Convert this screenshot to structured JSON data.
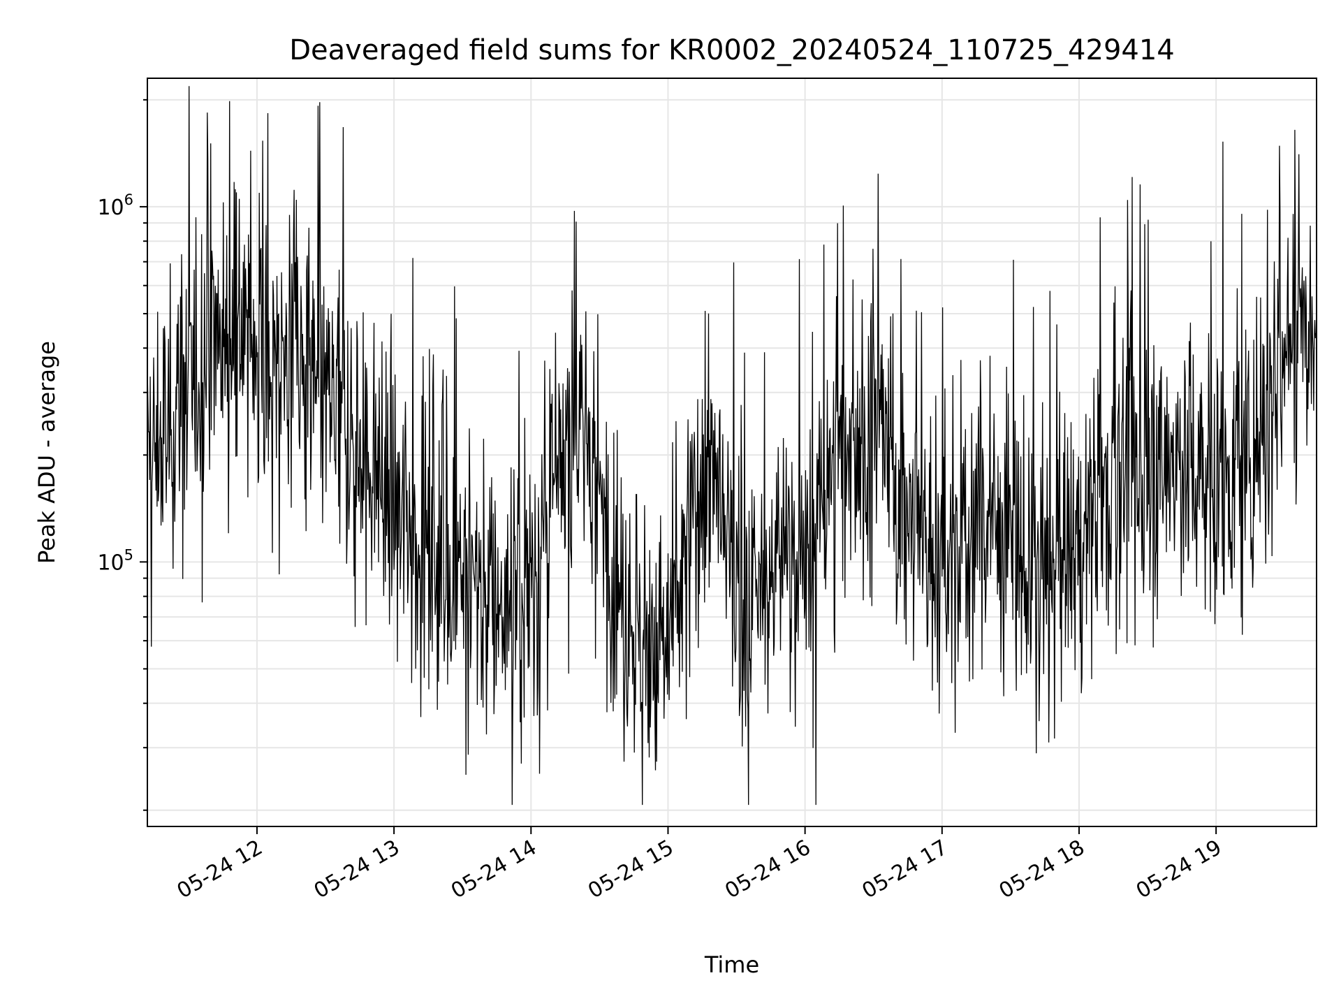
{
  "chart_data": {
    "type": "line",
    "title": "Deaveraged field sums for KR0002_20240524_110725_429414",
    "xlabel": "Time",
    "ylabel": "Peak ADU - average",
    "yscale": "log",
    "ylim": [
      18000,
      2300000
    ],
    "xlim": [
      "05-24 11:12",
      "05-24 19:44"
    ],
    "x_ticks": [
      "05-24 12",
      "05-24 13",
      "05-24 14",
      "05-24 15",
      "05-24 16",
      "05-24 17",
      "05-24 18",
      "05-24 19"
    ],
    "y_ticks": [
      {
        "base": "10",
        "exp": "5",
        "value": 100000
      },
      {
        "base": "10",
        "exp": "6",
        "value": 1000000
      }
    ],
    "grid": true,
    "line_color": "#000000",
    "grid_color": "#e6e6e6",
    "series": [
      {
        "name": "",
        "x": [
          "05-24 11:12",
          "05-24 11:21",
          "05-24 11:30",
          "05-24 11:39",
          "05-24 11:48",
          "05-24 11:57",
          "05-24 12:06",
          "05-24 12:15",
          "05-24 12:24",
          "05-24 12:33",
          "05-24 12:42",
          "05-24 12:51",
          "05-24 13:00",
          "05-24 13:09",
          "05-24 13:18",
          "05-24 13:27",
          "05-24 13:36",
          "05-24 13:45",
          "05-24 13:54",
          "05-24 14:03",
          "05-24 14:12",
          "05-24 14:21",
          "05-24 14:30",
          "05-24 14:39",
          "05-24 14:48",
          "05-24 14:57",
          "05-24 15:06",
          "05-24 15:15",
          "05-24 15:24",
          "05-24 15:33",
          "05-24 15:42",
          "05-24 15:51",
          "05-24 16:00",
          "05-24 16:09",
          "05-24 16:18",
          "05-24 16:27",
          "05-24 16:36",
          "05-24 16:45",
          "05-24 16:54",
          "05-24 17:03",
          "05-24 17:12",
          "05-24 17:21",
          "05-24 17:30",
          "05-24 17:39",
          "05-24 17:48",
          "05-24 17:57",
          "05-24 18:06",
          "05-24 18:15",
          "05-24 18:24",
          "05-24 18:33",
          "05-24 18:42",
          "05-24 18:51",
          "05-24 19:00",
          "05-24 19:09",
          "05-24 19:18",
          "05-24 19:27",
          "05-24 19:36",
          "05-24 19:44"
        ],
        "values": [
          190000,
          230000,
          300000,
          420000,
          460000,
          430000,
          390000,
          360000,
          310000,
          260000,
          220000,
          180000,
          150000,
          120000,
          110000,
          100000,
          90000,
          80000,
          80000,
          100000,
          160000,
          260000,
          160000,
          80000,
          60000,
          55000,
          80000,
          200000,
          120000,
          70000,
          80000,
          120000,
          90000,
          160000,
          220000,
          230000,
          200000,
          140000,
          110000,
          90000,
          110000,
          150000,
          110000,
          90000,
          85000,
          110000,
          150000,
          180000,
          180000,
          170000,
          200000,
          180000,
          170000,
          160000,
          230000,
          380000,
          470000,
          560000
        ]
      }
    ]
  }
}
